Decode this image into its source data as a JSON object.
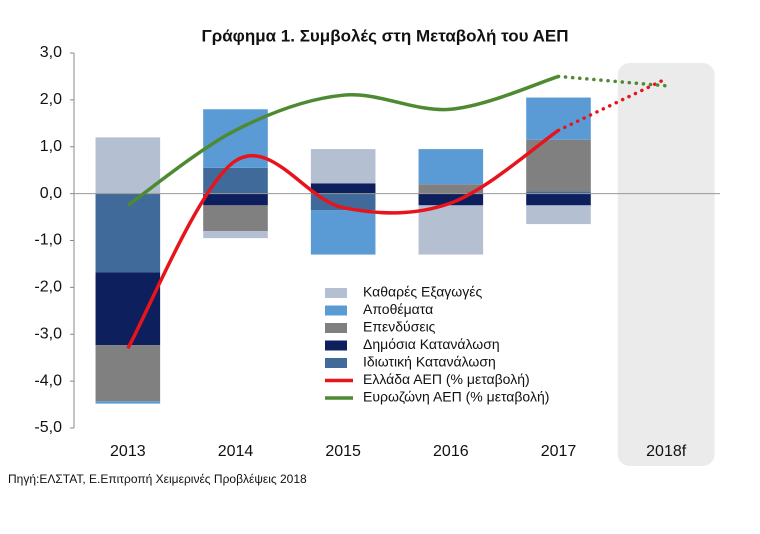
{
  "chart_data": {
    "type": "bar",
    "title": "Γράφημα 1. Συμβολές στη Μεταβολή του ΑΕΠ",
    "source": "Πηγή:ΕΛΣΤΑΤ, Ε.Επιτροπή Χειμερινές Προβλέψεις 2018",
    "categories": [
      "2013",
      "2014",
      "2015",
      "2016",
      "2017",
      "2018f"
    ],
    "series": [
      {
        "name": "Καθαρές Εξαγωγές",
        "type": "bar",
        "color": "#b4bfd2",
        "values": [
          1.2,
          -0.15,
          0.73,
          -1.05,
          -0.4,
          null
        ]
      },
      {
        "name": "Αποθέματα",
        "type": "bar",
        "color": "#5b9bd5",
        "values": [
          -0.05,
          1.25,
          -0.95,
          0.75,
          0.9,
          null
        ]
      },
      {
        "name": "Επενδύσεις",
        "type": "bar",
        "color": "#808080",
        "values": [
          -1.2,
          -0.55,
          0.0,
          0.2,
          1.1,
          null
        ]
      },
      {
        "name": "Δημόσια Κατανάλωση",
        "type": "bar",
        "color": "#0d1f5c",
        "values": [
          -1.55,
          -0.25,
          0.22,
          -0.25,
          -0.25,
          null
        ]
      },
      {
        "name": "Ιδιωτική Κατανάλωση",
        "type": "bar",
        "color": "#3f6a99",
        "values": [
          -1.68,
          0.55,
          -0.35,
          0.0,
          0.05,
          null
        ]
      },
      {
        "name": "Ελλάδα ΑΕΠ (% μεταβολή)",
        "type": "line",
        "color": "#e8141b",
        "values": [
          -3.3,
          0.7,
          -0.3,
          -0.2,
          1.35,
          2.45
        ]
      },
      {
        "name": "Ευρωζώνη ΑΕΠ (% μεταβολή)",
        "type": "line",
        "color": "#4e8a32",
        "values": [
          -0.25,
          1.35,
          2.1,
          1.8,
          2.5,
          2.3
        ]
      }
    ],
    "ylim": [
      -5,
      3
    ],
    "yticks": [
      {
        "value": -5,
        "label": "-5,0"
      },
      {
        "value": -4,
        "label": "-4,0"
      },
      {
        "value": -3,
        "label": "-3,0"
      },
      {
        "value": -2,
        "label": "-2,0"
      },
      {
        "value": -1,
        "label": "-1,0"
      },
      {
        "value": 0,
        "label": "0,0"
      },
      {
        "value": 1,
        "label": "1,0"
      },
      {
        "value": 2,
        "label": "2,0"
      },
      {
        "value": 3,
        "label": "3,0"
      }
    ]
  }
}
